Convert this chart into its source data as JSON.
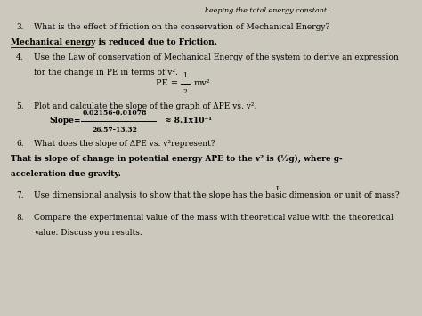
{
  "bg_color": "#cdc8be",
  "top_text_left": "keeping the total energy constant.",
  "top_text_right": "",
  "figsize": [
    4.74,
    3.55
  ],
  "dpi": 100,
  "items": [
    {
      "type": "numbered",
      "num": "3.",
      "text": "What is the effect of friction on the conservation of Mechanical Energy?",
      "bold": false
    },
    {
      "type": "answer",
      "text": "Mechanical energy is reduced due to Friction.",
      "bold": true,
      "underline": true
    },
    {
      "type": "numbered",
      "num": "4.",
      "text": "Use the Law of conservation of Mechanical Energy of the system to derive an expression",
      "bold": false
    },
    {
      "type": "continuation",
      "text": "for the change in PE in terms of v².",
      "bold": false
    },
    {
      "type": "formula",
      "text": "PE = ½ mv²"
    },
    {
      "type": "numbered",
      "num": "5.",
      "text": "Plot and calculate the slope of the graph of ΔPE vs. v².",
      "bold": false
    },
    {
      "type": "slope"
    },
    {
      "type": "numbered",
      "num": "6.",
      "text": "What does the slope of ΔPE vs. v²represent?",
      "bold": false
    },
    {
      "type": "answer",
      "text": "That is slope of change in potential energy APE to the v² is (½g), where g-",
      "bold": true,
      "underline": false
    },
    {
      "type": "answer",
      "text": "acceleration due gravity.",
      "bold": true,
      "underline": false
    },
    {
      "type": "cursor"
    },
    {
      "type": "numbered",
      "num": "7.",
      "text": "Use dimensional analysis to show that the slope has the basic dimension or unit of mass?",
      "bold": false
    },
    {
      "type": "blank"
    },
    {
      "type": "numbered",
      "num": "8.",
      "text": "Compare the experimental value of the mass with theoretical value with the theoretical",
      "bold": false
    },
    {
      "type": "continuation",
      "text": "value. Discuss you results.",
      "bold": false
    }
  ]
}
